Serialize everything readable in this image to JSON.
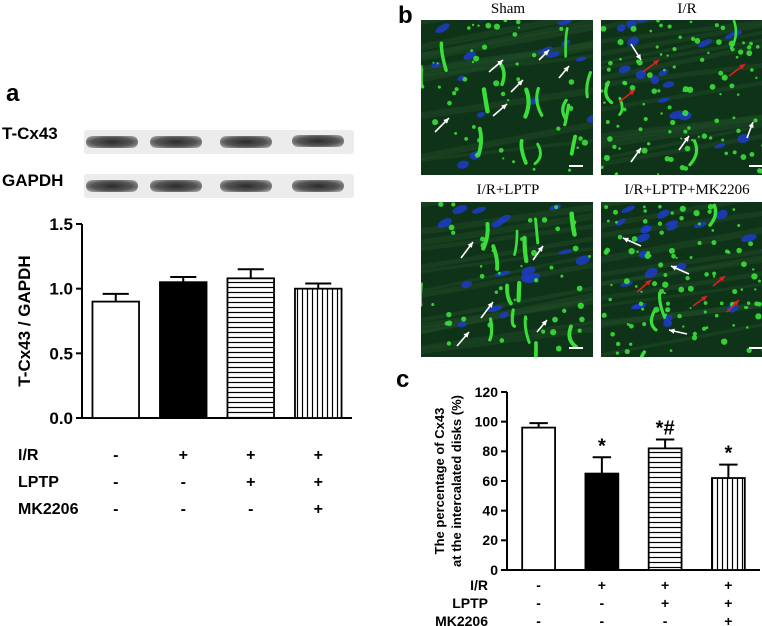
{
  "panel_a": {
    "label": "a",
    "blot_labels": [
      "T-Cx43",
      "GAPDH"
    ],
    "row_labels": [
      "I/R",
      "LPTP",
      "MK2206"
    ],
    "conditions": [
      [
        "-",
        "+",
        "+",
        "+"
      ],
      [
        "-",
        "-",
        "+",
        "+"
      ],
      [
        "-",
        "-",
        "-",
        "+"
      ]
    ]
  },
  "panel_b": {
    "label": "b",
    "titles": [
      "Sham",
      "I/R",
      "I/R+LPTP",
      "I/R+LPTP+MK2206"
    ]
  },
  "panel_c": {
    "label": "c",
    "row_labels": [
      "I/R",
      "LPTP",
      "MK2206"
    ],
    "conditions": [
      [
        "-",
        "+",
        "+",
        "+"
      ],
      [
        "-",
        "-",
        "+",
        "+"
      ],
      [
        "-",
        "-",
        "-",
        "+"
      ]
    ]
  },
  "chart_data": [
    {
      "type": "bar",
      "categories": [
        "1",
        "2",
        "3",
        "4"
      ],
      "values": [
        0.9,
        1.05,
        1.08,
        1.0
      ],
      "errors": [
        0.06,
        0.04,
        0.07,
        0.04
      ],
      "patterns": [
        "white",
        "black",
        "horizontal",
        "vertical"
      ],
      "ylabel": "T-Cx43 / GAPDH",
      "ylim": [
        0,
        1.5
      ],
      "yticks": [
        "0.0",
        "0.5",
        "1.0",
        "1.5"
      ],
      "annotations": [
        "",
        "",
        "",
        ""
      ]
    },
    {
      "type": "bar",
      "categories": [
        "1",
        "2",
        "3",
        "4"
      ],
      "values": [
        96,
        65,
        82,
        62
      ],
      "errors": [
        3,
        11,
        6,
        9
      ],
      "patterns": [
        "white",
        "black",
        "horizontal",
        "vertical"
      ],
      "ylabel": "The percentage of Cx43 at the intercalated disks (%)",
      "ylim": [
        0,
        120
      ],
      "yticks": [
        "0",
        "20",
        "40",
        "60",
        "80",
        "100",
        "120"
      ],
      "annotations": [
        "",
        "*",
        "*#",
        "*"
      ]
    }
  ],
  "colors": {
    "green": "#3adf3a",
    "blue": "#1d3cc8",
    "tissue": "#0f3318",
    "arrow_red": "#e02020"
  }
}
